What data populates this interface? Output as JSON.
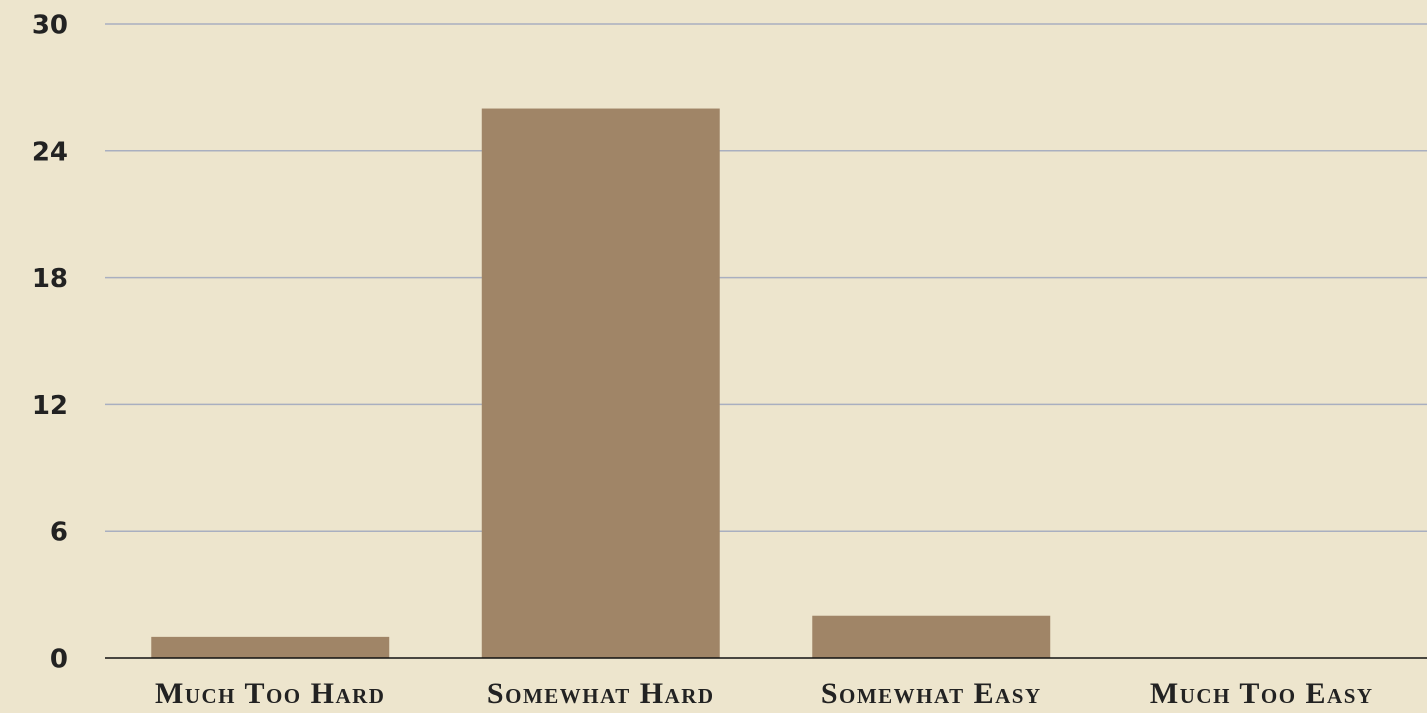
{
  "chart_data": {
    "type": "bar",
    "categories": [
      "Much Too Hard",
      "Somewhat Hard",
      "Somewhat Easy",
      "Much Too Easy"
    ],
    "values": [
      1,
      26,
      2,
      0
    ],
    "color": "#a08567",
    "ylim": [
      0,
      30
    ],
    "yticks": [
      0,
      6,
      12,
      18,
      24,
      30
    ],
    "grid": true
  }
}
